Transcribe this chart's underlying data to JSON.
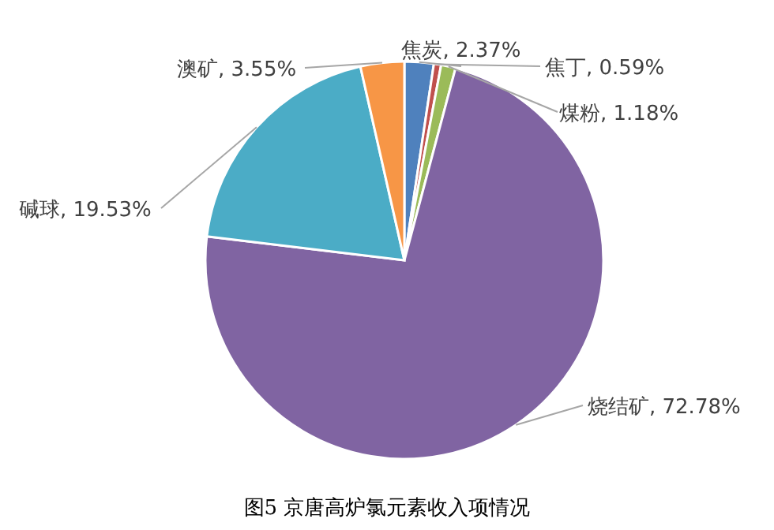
{
  "chart_data": {
    "type": "pie",
    "categories": [
      "焦炭",
      "焦丁",
      "煤粉",
      "烧结矿",
      "碱球",
      "澳矿"
    ],
    "values": [
      2.37,
      0.59,
      1.18,
      72.78,
      19.53,
      3.55
    ],
    "colors": [
      "#4f81bd",
      "#c0504d",
      "#9bbb59",
      "#8064a2",
      "#4bacc6",
      "#f79646"
    ],
    "value_labels": [
      "2.37%",
      "0.59%",
      "1.18%",
      "72.78%",
      "19.53%",
      "3.55%"
    ],
    "annotations": [
      "图5  京唐高炉氯元素收入项情况"
    ]
  }
}
